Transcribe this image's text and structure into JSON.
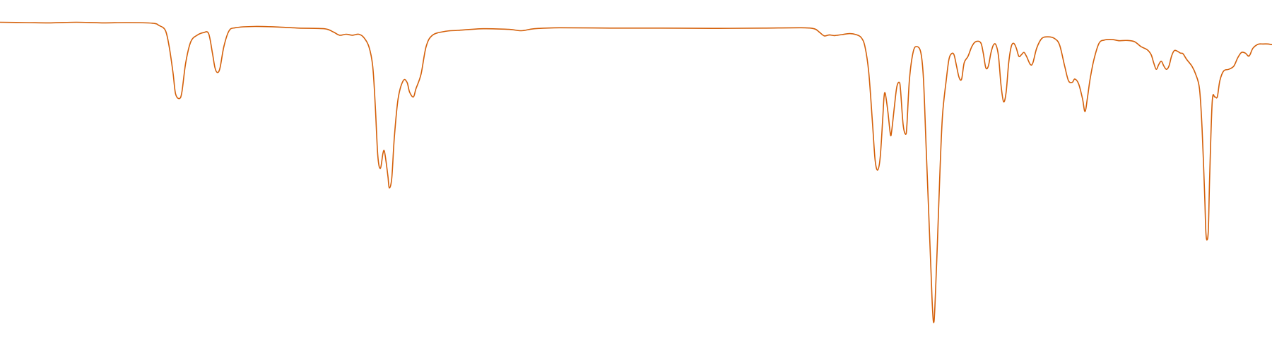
{
  "colors": {
    "background": "#ffffff",
    "line": "#d4600a"
  },
  "chart_data": {
    "type": "line",
    "grid": false,
    "legend": "none",
    "xlim": [
      0,
      1
    ],
    "ylim": [
      0,
      1
    ],
    "series": [
      {
        "points": [
          [
            0.0,
            0.975
          ],
          [
            0.02,
            0.974
          ],
          [
            0.04,
            0.973
          ],
          [
            0.06,
            0.975
          ],
          [
            0.08,
            0.973
          ],
          [
            0.1,
            0.974
          ],
          [
            0.12,
            0.972
          ],
          [
            0.125,
            0.965
          ],
          [
            0.13,
            0.95
          ],
          [
            0.133,
            0.9
          ],
          [
            0.136,
            0.82
          ],
          [
            0.138,
            0.755
          ],
          [
            0.141,
            0.74
          ],
          [
            0.143,
            0.76
          ],
          [
            0.146,
            0.85
          ],
          [
            0.15,
            0.915
          ],
          [
            0.155,
            0.935
          ],
          [
            0.16,
            0.943
          ],
          [
            0.164,
            0.94
          ],
          [
            0.167,
            0.88
          ],
          [
            0.169,
            0.835
          ],
          [
            0.171,
            0.82
          ],
          [
            0.173,
            0.835
          ],
          [
            0.176,
            0.9
          ],
          [
            0.18,
            0.948
          ],
          [
            0.185,
            0.958
          ],
          [
            0.2,
            0.962
          ],
          [
            0.22,
            0.96
          ],
          [
            0.235,
            0.957
          ],
          [
            0.255,
            0.955
          ],
          [
            0.262,
            0.945
          ],
          [
            0.267,
            0.935
          ],
          [
            0.272,
            0.938
          ],
          [
            0.277,
            0.935
          ],
          [
            0.282,
            0.938
          ],
          [
            0.286,
            0.928
          ],
          [
            0.29,
            0.9
          ],
          [
            0.293,
            0.84
          ],
          [
            0.295,
            0.72
          ],
          [
            0.297,
            0.565
          ],
          [
            0.299,
            0.525
          ],
          [
            0.301,
            0.57
          ],
          [
            0.302,
            0.58
          ],
          [
            0.303,
            0.56
          ],
          [
            0.305,
            0.5
          ],
          [
            0.306,
            0.465
          ],
          [
            0.308,
            0.495
          ],
          [
            0.31,
            0.62
          ],
          [
            0.313,
            0.74
          ],
          [
            0.317,
            0.795
          ],
          [
            0.32,
            0.79
          ],
          [
            0.322,
            0.76
          ],
          [
            0.325,
            0.745
          ],
          [
            0.327,
            0.77
          ],
          [
            0.331,
            0.815
          ],
          [
            0.335,
            0.9
          ],
          [
            0.34,
            0.935
          ],
          [
            0.35,
            0.947
          ],
          [
            0.36,
            0.95
          ],
          [
            0.38,
            0.955
          ],
          [
            0.4,
            0.953
          ],
          [
            0.41,
            0.949
          ],
          [
            0.42,
            0.955
          ],
          [
            0.44,
            0.958
          ],
          [
            0.48,
            0.957
          ],
          [
            0.52,
            0.957
          ],
          [
            0.56,
            0.956
          ],
          [
            0.6,
            0.957
          ],
          [
            0.63,
            0.958
          ],
          [
            0.64,
            0.955
          ],
          [
            0.644,
            0.945
          ],
          [
            0.648,
            0.933
          ],
          [
            0.652,
            0.936
          ],
          [
            0.656,
            0.934
          ],
          [
            0.662,
            0.937
          ],
          [
            0.668,
            0.94
          ],
          [
            0.673,
            0.937
          ],
          [
            0.677,
            0.928
          ],
          [
            0.68,
            0.9
          ],
          [
            0.683,
            0.82
          ],
          [
            0.686,
            0.66
          ],
          [
            0.688,
            0.55
          ],
          [
            0.69,
            0.52
          ],
          [
            0.692,
            0.56
          ],
          [
            0.694,
            0.68
          ],
          [
            0.695,
            0.745
          ],
          [
            0.696,
            0.755
          ],
          [
            0.698,
            0.7
          ],
          [
            0.7,
            0.63
          ],
          [
            0.701,
            0.64
          ],
          [
            0.703,
            0.71
          ],
          [
            0.705,
            0.775
          ],
          [
            0.707,
            0.79
          ],
          [
            0.708,
            0.765
          ],
          [
            0.71,
            0.66
          ],
          [
            0.712,
            0.63
          ],
          [
            0.713,
            0.66
          ],
          [
            0.715,
            0.8
          ],
          [
            0.718,
            0.885
          ],
          [
            0.721,
            0.9
          ],
          [
            0.724,
            0.88
          ],
          [
            0.726,
            0.8
          ],
          [
            0.728,
            0.6
          ],
          [
            0.73,
            0.4
          ],
          [
            0.732,
            0.2
          ],
          [
            0.733,
            0.1
          ],
          [
            0.734,
            0.05
          ],
          [
            0.735,
            0.1
          ],
          [
            0.737,
            0.3
          ],
          [
            0.739,
            0.52
          ],
          [
            0.741,
            0.69
          ],
          [
            0.744,
            0.8
          ],
          [
            0.746,
            0.86
          ],
          [
            0.748,
            0.878
          ],
          [
            0.75,
            0.875
          ],
          [
            0.752,
            0.84
          ],
          [
            0.754,
            0.805
          ],
          [
            0.756,
            0.8
          ],
          [
            0.758,
            0.85
          ],
          [
            0.761,
            0.87
          ],
          [
            0.764,
            0.9
          ],
          [
            0.767,
            0.915
          ],
          [
            0.771,
            0.912
          ],
          [
            0.773,
            0.88
          ],
          [
            0.775,
            0.835
          ],
          [
            0.777,
            0.84
          ],
          [
            0.779,
            0.88
          ],
          [
            0.781,
            0.905
          ],
          [
            0.783,
            0.905
          ],
          [
            0.785,
            0.87
          ],
          [
            0.787,
            0.78
          ],
          [
            0.789,
            0.73
          ],
          [
            0.791,
            0.76
          ],
          [
            0.793,
            0.85
          ],
          [
            0.795,
            0.9
          ],
          [
            0.797,
            0.91
          ],
          [
            0.799,
            0.895
          ],
          [
            0.801,
            0.87
          ],
          [
            0.803,
            0.875
          ],
          [
            0.805,
            0.882
          ],
          [
            0.807,
            0.87
          ],
          [
            0.81,
            0.845
          ],
          [
            0.812,
            0.85
          ],
          [
            0.815,
            0.895
          ],
          [
            0.819,
            0.925
          ],
          [
            0.824,
            0.93
          ],
          [
            0.829,
            0.925
          ],
          [
            0.833,
            0.905
          ],
          [
            0.837,
            0.84
          ],
          [
            0.84,
            0.795
          ],
          [
            0.843,
            0.79
          ],
          [
            0.845,
            0.8
          ],
          [
            0.848,
            0.785
          ],
          [
            0.851,
            0.74
          ],
          [
            0.853,
            0.7
          ],
          [
            0.855,
            0.745
          ],
          [
            0.857,
            0.8
          ],
          [
            0.86,
            0.86
          ],
          [
            0.864,
            0.91
          ],
          [
            0.868,
            0.92
          ],
          [
            0.874,
            0.922
          ],
          [
            0.88,
            0.918
          ],
          [
            0.886,
            0.919
          ],
          [
            0.892,
            0.915
          ],
          [
            0.897,
            0.9
          ],
          [
            0.902,
            0.89
          ],
          [
            0.905,
            0.875
          ],
          [
            0.907,
            0.85
          ],
          [
            0.909,
            0.83
          ],
          [
            0.911,
            0.845
          ],
          [
            0.913,
            0.855
          ],
          [
            0.915,
            0.84
          ],
          [
            0.917,
            0.83
          ],
          [
            0.919,
            0.84
          ],
          [
            0.921,
            0.87
          ],
          [
            0.923,
            0.887
          ],
          [
            0.925,
            0.887
          ],
          [
            0.928,
            0.88
          ],
          [
            0.93,
            0.878
          ],
          [
            0.933,
            0.86
          ],
          [
            0.937,
            0.84
          ],
          [
            0.94,
            0.815
          ],
          [
            0.943,
            0.77
          ],
          [
            0.945,
            0.65
          ],
          [
            0.947,
            0.45
          ],
          [
            0.948,
            0.33
          ],
          [
            0.949,
            0.305
          ],
          [
            0.95,
            0.34
          ],
          [
            0.951,
            0.5
          ],
          [
            0.953,
            0.73
          ],
          [
            0.955,
            0.745
          ],
          [
            0.957,
            0.745
          ],
          [
            0.959,
            0.795
          ],
          [
            0.962,
            0.825
          ],
          [
            0.966,
            0.83
          ],
          [
            0.97,
            0.84
          ],
          [
            0.973,
            0.865
          ],
          [
            0.976,
            0.882
          ],
          [
            0.979,
            0.88
          ],
          [
            0.982,
            0.871
          ],
          [
            0.985,
            0.895
          ],
          [
            0.989,
            0.907
          ],
          [
            0.993,
            0.908
          ],
          [
            0.997,
            0.908
          ],
          [
            1.0,
            0.906
          ]
        ]
      }
    ]
  }
}
